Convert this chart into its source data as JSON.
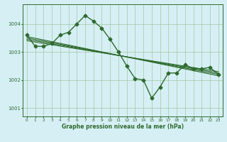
{
  "bg_color": "#d6eff5",
  "grid_color": "#a0c8a0",
  "line_color": "#2d6a2d",
  "title": "Graphe pression niveau de la mer (hPa)",
  "xlim": [
    -0.5,
    23.5
  ],
  "ylim": [
    1000.7,
    1004.7
  ],
  "yticks": [
    1001,
    1002,
    1003,
    1004
  ],
  "xticks": [
    0,
    1,
    2,
    3,
    4,
    5,
    6,
    7,
    8,
    9,
    10,
    11,
    12,
    13,
    14,
    15,
    16,
    17,
    18,
    19,
    20,
    21,
    22,
    23
  ],
  "series": [
    {
      "x": [
        0,
        1,
        2,
        3,
        4,
        5,
        6,
        7,
        8,
        9,
        10,
        11,
        12,
        13,
        14,
        15,
        16,
        17,
        18,
        19,
        20,
        21,
        22,
        23
      ],
      "y": [
        1003.6,
        1003.2,
        1003.2,
        1003.3,
        1003.6,
        1003.7,
        1004.0,
        1004.3,
        1004.1,
        1003.85,
        1003.45,
        1003.0,
        1002.5,
        1002.05,
        1002.0,
        1001.35,
        1001.75,
        1002.25,
        1002.25,
        1002.55,
        1002.4,
        1002.4,
        1002.45,
        1002.2
      ],
      "marker": "D",
      "markersize": 2.5,
      "linewidth": 1.0
    },
    {
      "x": [
        0,
        23
      ],
      "y": [
        1003.55,
        1002.15
      ],
      "marker": null,
      "linewidth": 0.8
    },
    {
      "x": [
        0,
        23
      ],
      "y": [
        1003.5,
        1002.2
      ],
      "marker": null,
      "linewidth": 0.8
    },
    {
      "x": [
        0,
        23
      ],
      "y": [
        1003.45,
        1002.25
      ],
      "marker": null,
      "linewidth": 0.8
    },
    {
      "x": [
        0,
        23
      ],
      "y": [
        1003.4,
        1002.3
      ],
      "marker": null,
      "linewidth": 0.8
    }
  ]
}
